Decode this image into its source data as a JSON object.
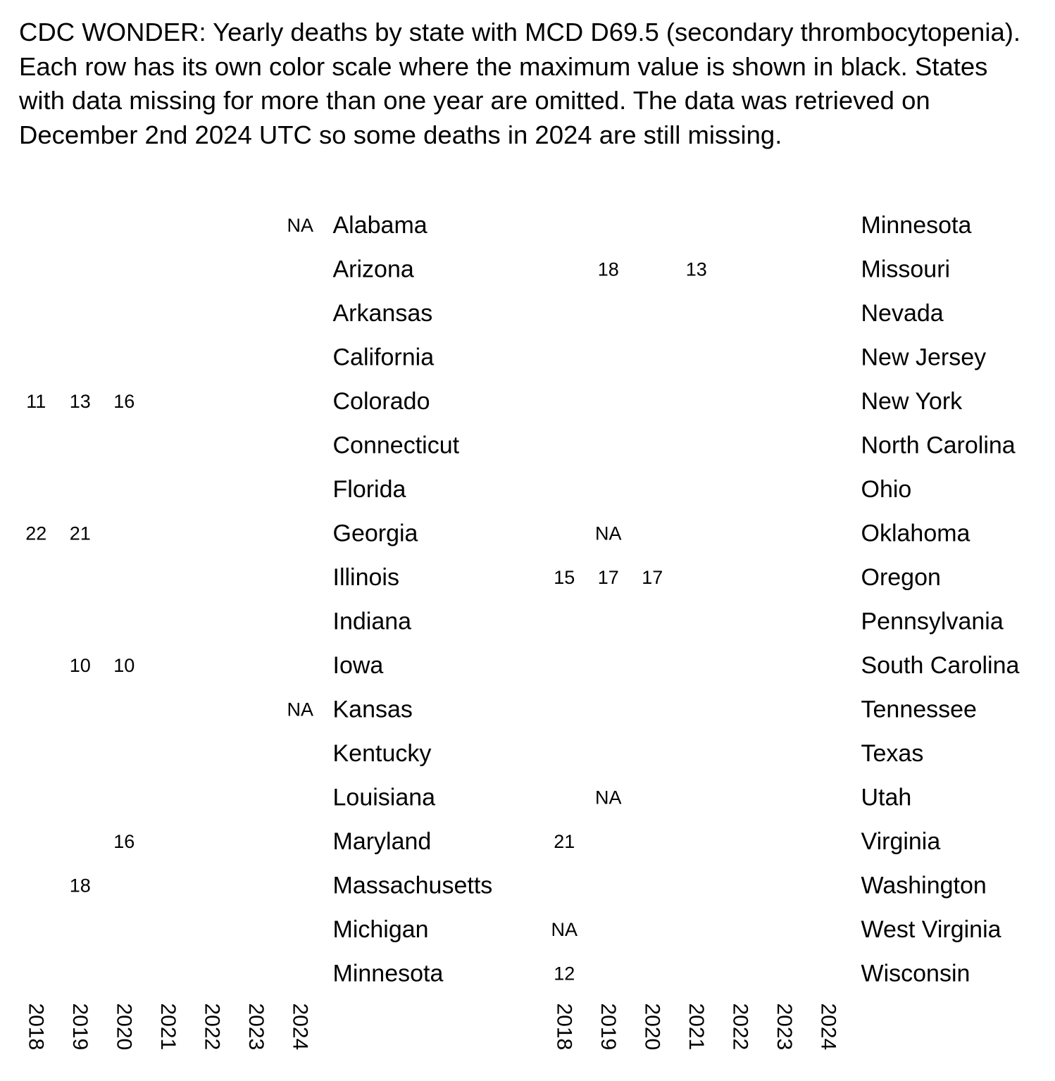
{
  "title": "CDC WONDER: Yearly deaths by state with MCD D69.5 (secondary thrombocytopenia). Each row has its own color scale where the maximum value is shown in black. States with data missing for more than one year are omitted. The data was retrieved on December 2nd 2024 UTC so some deaths in 2024 are still missing.",
  "chart_data": [
    {
      "type": "heatmap",
      "years": [
        "2018",
        "2019",
        "2020",
        "2021",
        "2022",
        "2023",
        "2024"
      ],
      "rows": [
        {
          "state": "Alabama",
          "cells": [
            "",
            "",
            "",
            "",
            "",
            "",
            "NA"
          ]
        },
        {
          "state": "Arizona",
          "cells": [
            "",
            "",
            "",
            "",
            "",
            "",
            ""
          ]
        },
        {
          "state": "Arkansas",
          "cells": [
            "",
            "",
            "",
            "",
            "",
            "",
            ""
          ]
        },
        {
          "state": "California",
          "cells": [
            "",
            "",
            "",
            "",
            "",
            "",
            ""
          ]
        },
        {
          "state": "Colorado",
          "cells": [
            "11",
            "13",
            "16",
            "",
            "",
            "",
            ""
          ]
        },
        {
          "state": "Connecticut",
          "cells": [
            "",
            "",
            "",
            "",
            "",
            "",
            ""
          ]
        },
        {
          "state": "Florida",
          "cells": [
            "",
            "",
            "",
            "",
            "",
            "",
            ""
          ]
        },
        {
          "state": "Georgia",
          "cells": [
            "22",
            "21",
            "",
            "",
            "",
            "",
            ""
          ]
        },
        {
          "state": "Illinois",
          "cells": [
            "",
            "",
            "",
            "",
            "",
            "",
            ""
          ]
        },
        {
          "state": "Indiana",
          "cells": [
            "",
            "",
            "",
            "",
            "",
            "",
            ""
          ]
        },
        {
          "state": "Iowa",
          "cells": [
            "",
            "10",
            "10",
            "",
            "",
            "",
            ""
          ]
        },
        {
          "state": "Kansas",
          "cells": [
            "",
            "",
            "",
            "",
            "",
            "",
            "NA"
          ]
        },
        {
          "state": "Kentucky",
          "cells": [
            "",
            "",
            "",
            "",
            "",
            "",
            ""
          ]
        },
        {
          "state": "Louisiana",
          "cells": [
            "",
            "",
            "",
            "",
            "",
            "",
            ""
          ]
        },
        {
          "state": "Maryland",
          "cells": [
            "",
            "",
            "16",
            "",
            "",
            "",
            ""
          ]
        },
        {
          "state": "Massachusetts",
          "cells": [
            "",
            "18",
            "",
            "",
            "",
            "",
            ""
          ]
        },
        {
          "state": "Michigan",
          "cells": [
            "",
            "",
            "",
            "",
            "",
            "",
            ""
          ]
        },
        {
          "state": "Minnesota",
          "cells": [
            "",
            "",
            "",
            "",
            "",
            "",
            ""
          ]
        }
      ]
    },
    {
      "type": "heatmap",
      "years": [
        "2018",
        "2019",
        "2020",
        "2021",
        "2022",
        "2023",
        "2024"
      ],
      "rows": [
        {
          "state": "Minnesota",
          "cells": [
            "",
            "",
            "",
            "",
            "",
            "",
            ""
          ]
        },
        {
          "state": "Missouri",
          "cells": [
            "",
            "18",
            "",
            "13",
            "",
            "",
            ""
          ]
        },
        {
          "state": "Nevada",
          "cells": [
            "",
            "",
            "",
            "",
            "",
            "",
            ""
          ]
        },
        {
          "state": "New Jersey",
          "cells": [
            "",
            "",
            "",
            "",
            "",
            "",
            ""
          ]
        },
        {
          "state": "New York",
          "cells": [
            "",
            "",
            "",
            "",
            "",
            "",
            ""
          ]
        },
        {
          "state": "North Carolina",
          "cells": [
            "",
            "",
            "",
            "",
            "",
            "",
            ""
          ]
        },
        {
          "state": "Ohio",
          "cells": [
            "",
            "",
            "",
            "",
            "",
            "",
            ""
          ]
        },
        {
          "state": "Oklahoma",
          "cells": [
            "",
            "NA",
            "",
            "",
            "",
            "",
            ""
          ]
        },
        {
          "state": "Oregon",
          "cells": [
            "15",
            "17",
            "17",
            "",
            "",
            "",
            ""
          ]
        },
        {
          "state": "Pennsylvania",
          "cells": [
            "",
            "",
            "",
            "",
            "",
            "",
            ""
          ]
        },
        {
          "state": "South Carolina",
          "cells": [
            "",
            "",
            "",
            "",
            "",
            "",
            ""
          ]
        },
        {
          "state": "Tennessee",
          "cells": [
            "",
            "",
            "",
            "",
            "",
            "",
            ""
          ]
        },
        {
          "state": "Texas",
          "cells": [
            "",
            "",
            "",
            "",
            "",
            "",
            ""
          ]
        },
        {
          "state": "Utah",
          "cells": [
            "",
            "NA",
            "",
            "",
            "",
            "",
            ""
          ]
        },
        {
          "state": "Virginia",
          "cells": [
            "21",
            "",
            "",
            "",
            "",
            "",
            ""
          ]
        },
        {
          "state": "Washington",
          "cells": [
            "",
            "",
            "",
            "",
            "",
            "",
            ""
          ]
        },
        {
          "state": "West Virginia",
          "cells": [
            "NA",
            "",
            "",
            "",
            "",
            "",
            ""
          ]
        },
        {
          "state": "Wisconsin",
          "cells": [
            "12",
            "",
            "",
            "",
            "",
            "",
            ""
          ]
        }
      ]
    }
  ]
}
